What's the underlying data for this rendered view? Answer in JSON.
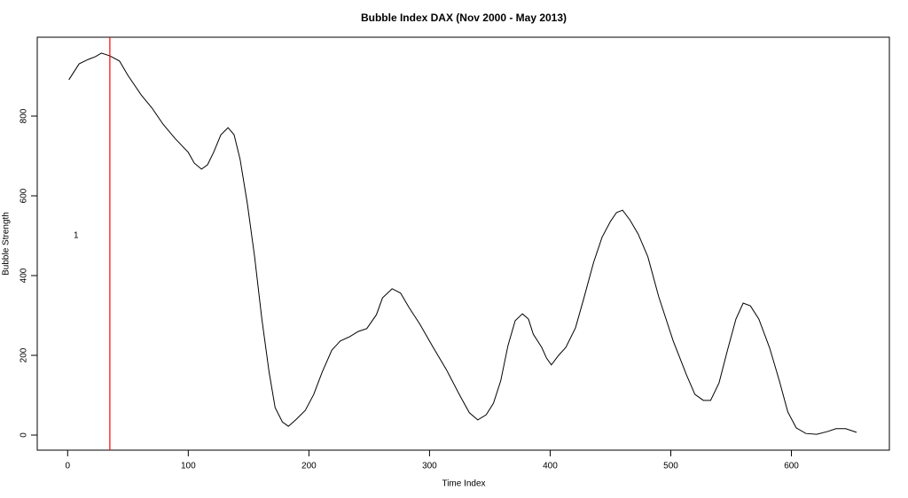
{
  "chart_data": {
    "type": "line",
    "title": "Bubble Index DAX (Nov 2000 - May 2013)",
    "x_label": "Time Index",
    "y_label": "Bubble Strength",
    "x": [
      1,
      9.5,
      17,
      23,
      28,
      35,
      43,
      50,
      61,
      70,
      79,
      89,
      100,
      105,
      111,
      116,
      121,
      127,
      133,
      138,
      143,
      149,
      155,
      161,
      167,
      172,
      178,
      183,
      189,
      197,
      204,
      211,
      219,
      226,
      234,
      241,
      248,
      256,
      261,
      269,
      276,
      283,
      292,
      303,
      314,
      325,
      333,
      340,
      347,
      353,
      359,
      365,
      371,
      377,
      382,
      386,
      393,
      397,
      401,
      407,
      413,
      421,
      428,
      436,
      443,
      450,
      455,
      460,
      466,
      473,
      481,
      490,
      502,
      513,
      520,
      527,
      533,
      540,
      547,
      554,
      560,
      566,
      573,
      582,
      590,
      597,
      604,
      612,
      621,
      630,
      637,
      645,
      654
    ],
    "values": [
      891,
      931,
      942,
      949,
      958,
      951,
      938,
      902,
      853,
      820,
      780,
      744,
      709,
      682,
      667,
      678,
      709,
      753,
      771,
      753,
      691,
      580,
      447,
      291,
      158,
      69,
      33,
      22,
      38,
      62,
      102,
      158,
      213,
      236,
      247,
      260,
      267,
      302,
      344,
      367,
      356,
      320,
      278,
      220,
      164,
      100,
      56,
      38,
      51,
      80,
      136,
      224,
      287,
      304,
      291,
      253,
      220,
      193,
      176,
      200,
      220,
      269,
      344,
      433,
      496,
      536,
      558,
      564,
      540,
      504,
      447,
      347,
      236,
      151,
      102,
      87,
      87,
      131,
      213,
      291,
      331,
      324,
      291,
      218,
      136,
      58,
      18,
      4,
      2,
      9,
      16,
      16,
      7
    ],
    "color": "#000000",
    "vline": {
      "x": 35,
      "color": "#ff0000"
    },
    "annotation": {
      "text": "1",
      "x": 7,
      "y": 500
    },
    "xlim": [
      -25.2,
      681.2
    ],
    "ylim": [
      -37.8,
      997.8
    ],
    "xticks": [
      0,
      100,
      200,
      300,
      400,
      500,
      600
    ],
    "yticks": [
      0,
      200,
      400,
      600,
      800
    ]
  }
}
